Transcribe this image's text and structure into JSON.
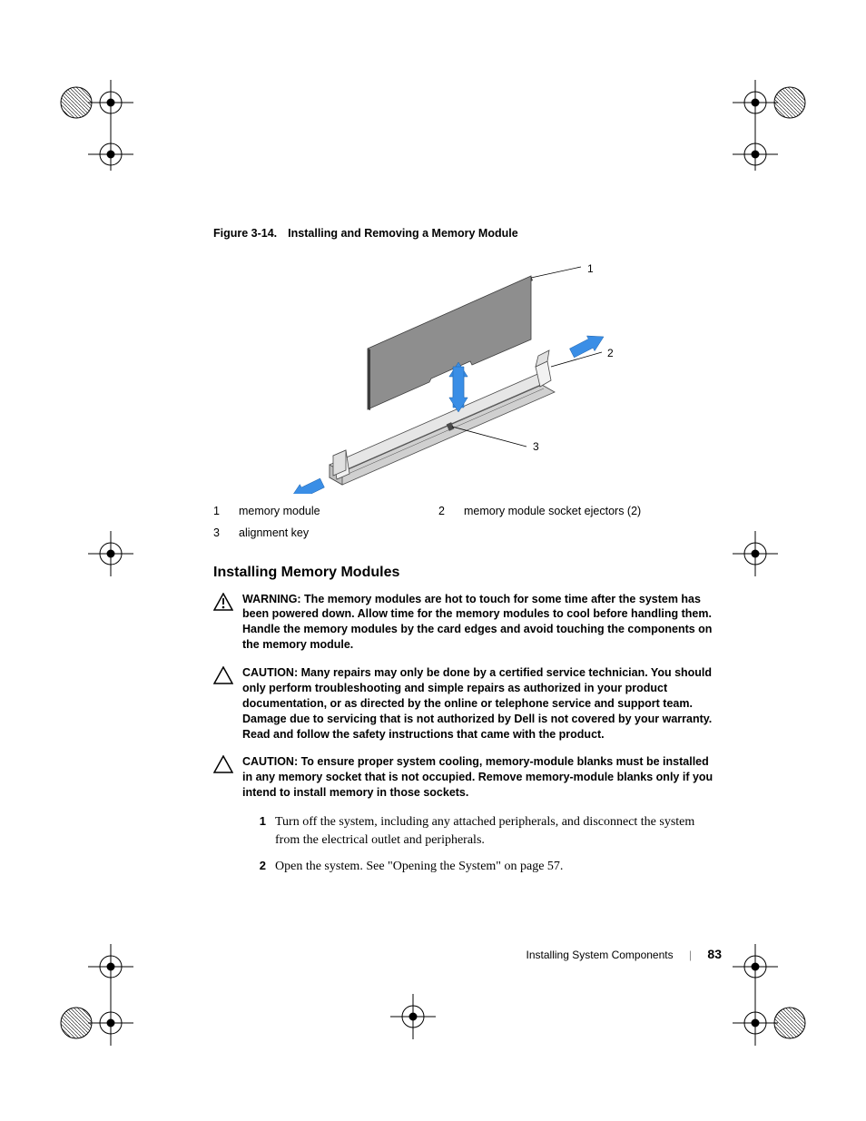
{
  "figure": {
    "label": "Figure 3-14.",
    "title": "Installing and Removing a Memory Module",
    "callouts": {
      "c1": {
        "n": "1",
        "text": "memory module"
      },
      "c2": {
        "n": "2",
        "text": "memory module socket ejectors (2)"
      },
      "c3": {
        "n": "3",
        "text": "alignment key"
      }
    },
    "leader_labels": {
      "l1": "1",
      "l2": "2",
      "l3": "3"
    },
    "colors": {
      "module_fill": "#8e8e8e",
      "module_edge": "#3c3c3c",
      "socket_fill": "#e6e6e6",
      "socket_edge": "#4a4a4a",
      "arrow_fill": "#3a8ee6",
      "leader": "#000000"
    }
  },
  "section": {
    "title": "Installing Memory Modules"
  },
  "alerts": {
    "warning": {
      "label": "WARNING:",
      "body": " The memory modules are hot to touch for some time after the system has been powered down. Allow time for the memory modules to cool before handling them. Handle the memory modules by the card edges and avoid touching the components on the memory module."
    },
    "caution1": {
      "label": "CAUTION:",
      "body": " Many repairs may only be done by a certified service technician. You should only perform troubleshooting and simple repairs as authorized in your product documentation, or as directed by the online or telephone service and support team. Damage due to servicing that is not authorized by Dell is not covered by your warranty. Read and follow the safety instructions that came with the product."
    },
    "caution2": {
      "label": "CAUTION:",
      "body": " To ensure proper system cooling, memory-module blanks must be installed in any memory socket that is not occupied. Remove memory-module blanks only if you intend to install memory in those sockets."
    }
  },
  "steps": {
    "s1": {
      "n": "1",
      "text": "Turn off the system, including any attached peripherals, and disconnect the system from the electrical outlet and peripherals."
    },
    "s2": {
      "n": "2",
      "text": "Open the system. See \"Opening the System\" on page 57."
    }
  },
  "footer": {
    "section": "Installing System Components",
    "page": "83"
  }
}
